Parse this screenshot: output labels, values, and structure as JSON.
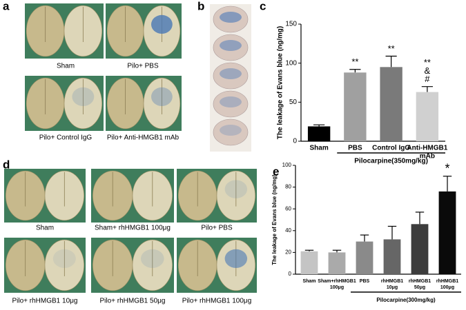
{
  "panel_labels": [
    "a",
    "b",
    "c",
    "d",
    "e"
  ],
  "panel_a": {
    "captions": [
      "Sham",
      "Pilo+ PBS",
      "Pilo+ Control IgG",
      "Pilo+ Anti-HMGB1 mAb"
    ]
  },
  "panel_d": {
    "captions": [
      "Sham",
      "Sham+ rhHMGB1 100μg",
      "Pilo+ PBS",
      "Pilo+ rhHMGB1 10μg",
      "Pilo+ rhHMGB1 50μg",
      "Pilo+ rhHMGB1 100μg"
    ]
  },
  "chart_data": [
    {
      "type": "bar",
      "y_label": "The leakage of Evans blue (ng/mg)",
      "categories": [
        [
          "Sham"
        ],
        [
          "PBS"
        ],
        [
          "Control IgG"
        ],
        [
          "Anti-HMGB1",
          "mAb"
        ]
      ],
      "values": [
        19,
        88,
        95,
        63
      ],
      "errors": [
        2,
        4,
        14,
        7
      ],
      "colors": [
        "#000000",
        "#a0a0a0",
        "#7a7a7a",
        "#d0d0d0"
      ],
      "annotations": [
        null,
        [
          "**"
        ],
        [
          "**"
        ],
        [
          "**",
          "&",
          "#"
        ]
      ],
      "group_label": "Pilocarpine(350mg/kg)",
      "ylim": [
        0,
        150
      ],
      "yticks": [
        0,
        50,
        100,
        150
      ]
    },
    {
      "type": "bar",
      "y_label": "The leakage of Evans blue (ng/mg)",
      "categories": [
        [
          "Sham"
        ],
        [
          "Sham+rhHMGB1",
          "100μg"
        ],
        [
          "PBS"
        ],
        [
          "rhHMGB1",
          "10μg"
        ],
        [
          "rhHMGB1",
          "50μg"
        ],
        [
          "rhHMGB1",
          "100μg"
        ]
      ],
      "values": [
        21,
        20,
        30,
        32,
        46,
        76
      ],
      "errors": [
        1,
        2,
        6,
        12,
        11,
        14
      ],
      "colors": [
        "#c4c4c4",
        "#aaaaaa",
        "#8a8a8a",
        "#666666",
        "#3c3c3c",
        "#0a0a0a"
      ],
      "annotations": [
        null,
        null,
        null,
        null,
        null,
        [
          "*"
        ]
      ],
      "group_label": "Pilocarpine(300mg/kg)",
      "ylim": [
        0,
        100
      ],
      "yticks": [
        0,
        20,
        40,
        60,
        80,
        100
      ]
    }
  ]
}
